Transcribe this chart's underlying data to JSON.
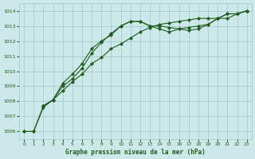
{
  "title": "Graphe pression niveau de la mer (hPa)",
  "bg_color": "#cce8e8",
  "plot_bg_color": "#cce8e8",
  "grid_color": "#aacccc",
  "line_color": "#1e5c1e",
  "xlim": [
    -0.5,
    23.5
  ],
  "ylim": [
    1005.5,
    1014.5
  ],
  "xticks": [
    0,
    1,
    2,
    3,
    4,
    5,
    6,
    7,
    8,
    9,
    10,
    11,
    12,
    13,
    14,
    15,
    16,
    17,
    18,
    19,
    20,
    21,
    22,
    23
  ],
  "yticks": [
    1006,
    1007,
    1008,
    1009,
    1010,
    1011,
    1012,
    1013,
    1014
  ],
  "series1_x": [
    0,
    1,
    2,
    3,
    4,
    5,
    6,
    7,
    8,
    9,
    10,
    11,
    12,
    13,
    14,
    15,
    16,
    17,
    18,
    19,
    20,
    21,
    22,
    23
  ],
  "series1_y": [
    1006.0,
    1006.0,
    1007.7,
    1008.1,
    1008.7,
    1009.3,
    1009.8,
    1010.5,
    1010.9,
    1011.5,
    1011.8,
    1012.2,
    1012.6,
    1012.9,
    1013.1,
    1013.2,
    1013.3,
    1013.4,
    1013.5,
    1013.5,
    1013.5,
    1013.8,
    1013.8,
    1014.0
  ],
  "series2_x": [
    0,
    1,
    2,
    3,
    4,
    5,
    6,
    7,
    8,
    9,
    10,
    11,
    12,
    13,
    14,
    15,
    16,
    17,
    18,
    19,
    20,
    21,
    22,
    23
  ],
  "series2_y": [
    1006.0,
    1006.0,
    1007.6,
    1008.1,
    1009.2,
    1009.8,
    1010.5,
    1011.5,
    1012.0,
    1012.4,
    1013.0,
    1013.3,
    1013.3,
    1013.0,
    1013.0,
    1012.9,
    1012.8,
    1012.7,
    1012.8,
    1013.1,
    1013.5,
    1013.8,
    1013.8,
    1014.0
  ],
  "series3_x": [
    2,
    3,
    4,
    5,
    6,
    7,
    8,
    9,
    10,
    11,
    12,
    13,
    14,
    15,
    16,
    17,
    18,
    19,
    20,
    21,
    22,
    23
  ],
  "series3_y": [
    1007.7,
    1008.1,
    1009.0,
    1009.5,
    1010.2,
    1011.2,
    1011.9,
    1012.5,
    1013.0,
    1013.3,
    1013.3,
    1013.0,
    1012.8,
    1012.6,
    1012.8,
    1012.9,
    1013.0,
    1013.1,
    1013.5,
    1013.5,
    1013.8,
    1014.0
  ]
}
